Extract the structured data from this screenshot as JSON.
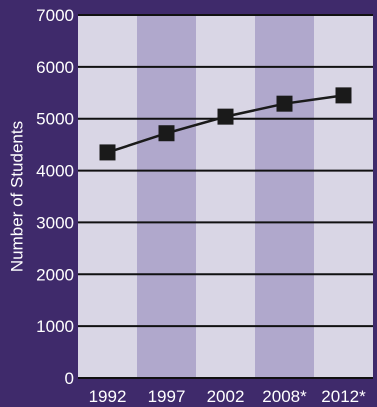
{
  "chart_data": {
    "type": "line",
    "title": "",
    "xlabel": "",
    "ylabel": "Number of Students",
    "categories": [
      "1992",
      "1997",
      "2002",
      "2008*",
      "2012*"
    ],
    "series": [
      {
        "values": [
          4350,
          4720,
          5040,
          5290,
          5450
        ]
      }
    ],
    "ylim": [
      0,
      7000
    ],
    "yticks": [
      0,
      1000,
      2000,
      3000,
      4000,
      5000,
      6000,
      7000
    ],
    "grid": true,
    "legend": "none",
    "colors": {
      "background": "#3f2a6b",
      "band_light": "#d9d6e5",
      "band_dark": "#b0a8cc",
      "gridline": "#111111",
      "line": "#1a1a1a",
      "marker": "#1a1a1a",
      "text": "#ffffff"
    }
  }
}
